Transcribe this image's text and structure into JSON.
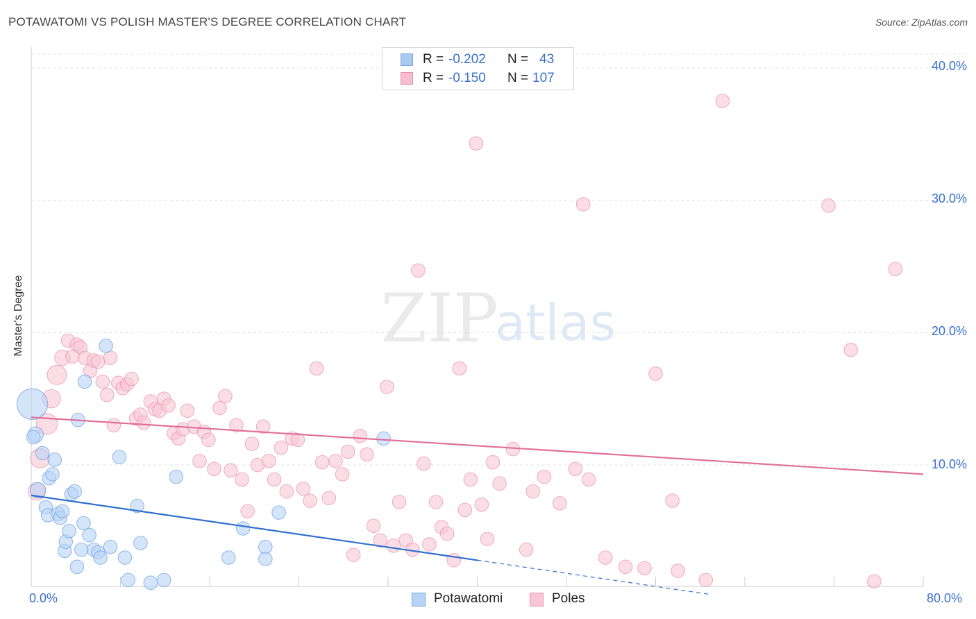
{
  "header": {
    "title": "POTAWATOMI VS POLISH MASTER'S DEGREE CORRELATION CHART",
    "source": "Source: ZipAtlas.com"
  },
  "watermark": {
    "zip": "ZIP",
    "atlas": "atlas"
  },
  "legend_top": [
    {
      "r_label": "R =",
      "r_value": "-0.202",
      "n_label": "N =",
      "n_value": "43",
      "color": "#a8c8f0",
      "border": "#7aa6dc"
    },
    {
      "r_label": "R =",
      "r_value": "-0.150",
      "n_label": "N =",
      "n_value": "107",
      "color": "#f7bcd0",
      "border": "#e892b0"
    }
  ],
  "legend_bottom": [
    {
      "label": "Potawatomi",
      "color": "#b7d3f5",
      "border": "#7aa6dc"
    },
    {
      "label": "Poles",
      "color": "#f9c6d6",
      "border": "#e892b0"
    }
  ],
  "axis_labels": {
    "x_min": "0.0%",
    "x_max": "80.0%",
    "y_ticks": [
      "10.0%",
      "20.0%",
      "30.0%",
      "40.0%"
    ]
  },
  "chart_data": {
    "type": "scatter",
    "title": "POTAWATOMI VS POLISH MASTER'S DEGREE CORRELATION CHART",
    "xlabel": "",
    "ylabel": "Master's Degree",
    "xlim": [
      0,
      80
    ],
    "ylim": [
      0,
      40
    ],
    "y_ticks": [
      10,
      20,
      30,
      40
    ],
    "series": [
      {
        "name": "Potawatomi",
        "color": "#6fa0e0",
        "fill": "#b7d3f5",
        "line_color": "#2f6fd0",
        "trend": {
          "x0": 0,
          "y0": 7.7,
          "x1": 40,
          "y1": 2.8,
          "dash_to_x": 61,
          "dash_to_y": 0.2
        },
        "points": [
          [
            0.1,
            14.6,
            30
          ],
          [
            0.4,
            12.3,
            14
          ],
          [
            0.6,
            8.1,
            14
          ],
          [
            1.0,
            10.9,
            12
          ],
          [
            1.3,
            6.8,
            12
          ],
          [
            1.5,
            6.2,
            12
          ],
          [
            1.6,
            9.0,
            12
          ],
          [
            1.9,
            9.3,
            12
          ],
          [
            2.1,
            10.4,
            12
          ],
          [
            2.4,
            6.3,
            12
          ],
          [
            2.6,
            6.0,
            12
          ],
          [
            2.8,
            6.5,
            12
          ],
          [
            3.0,
            3.5,
            12
          ],
          [
            3.1,
            4.2,
            12
          ],
          [
            3.4,
            5.0,
            12
          ],
          [
            3.6,
            7.8,
            12
          ],
          [
            3.9,
            8.0,
            12
          ],
          [
            4.1,
            2.3,
            12
          ],
          [
            4.2,
            13.4,
            12
          ],
          [
            4.5,
            3.6,
            12
          ],
          [
            4.7,
            5.6,
            12
          ],
          [
            4.8,
            16.3,
            12
          ],
          [
            5.2,
            4.7,
            12
          ],
          [
            5.6,
            3.6,
            12
          ],
          [
            6.0,
            3.4,
            12
          ],
          [
            6.2,
            3.0,
            12
          ],
          [
            6.7,
            19.0,
            12
          ],
          [
            7.1,
            3.8,
            12
          ],
          [
            7.9,
            10.6,
            12
          ],
          [
            8.4,
            3.0,
            12
          ],
          [
            8.7,
            1.3,
            12
          ],
          [
            9.5,
            6.9,
            12
          ],
          [
            9.8,
            4.1,
            12
          ],
          [
            10.7,
            1.1,
            12
          ],
          [
            11.9,
            1.3,
            12
          ],
          [
            13.0,
            9.1,
            12
          ],
          [
            17.7,
            3.0,
            12
          ],
          [
            19.0,
            5.2,
            12
          ],
          [
            21.0,
            3.8,
            12
          ],
          [
            21.0,
            2.9,
            12
          ],
          [
            22.2,
            6.4,
            12
          ],
          [
            31.6,
            12.0,
            12
          ],
          [
            0.2,
            12.1,
            12
          ]
        ]
      },
      {
        "name": "Poles",
        "color": "#e892b0",
        "fill": "#f9c6d6",
        "line_color": "#e0709a",
        "trend": {
          "x0": 0,
          "y0": 13.6,
          "x1": 80,
          "y1": 9.3
        },
        "points": [
          [
            0.5,
            8.0,
            16
          ],
          [
            0.8,
            10.5,
            18
          ],
          [
            1.4,
            13.1,
            20
          ],
          [
            1.8,
            15.0,
            17
          ],
          [
            2.3,
            16.8,
            18
          ],
          [
            2.8,
            18.1,
            14
          ],
          [
            3.3,
            19.4,
            12
          ],
          [
            3.7,
            18.2,
            12
          ],
          [
            4.1,
            19.1,
            12
          ],
          [
            4.4,
            18.9,
            12
          ],
          [
            4.8,
            18.1,
            12
          ],
          [
            5.3,
            17.1,
            12
          ],
          [
            5.6,
            17.9,
            12
          ],
          [
            6.0,
            17.8,
            12
          ],
          [
            6.4,
            16.3,
            12
          ],
          [
            6.8,
            15.3,
            12
          ],
          [
            7.1,
            18.1,
            12
          ],
          [
            7.4,
            13.0,
            12
          ],
          [
            7.8,
            16.2,
            12
          ],
          [
            8.2,
            15.8,
            12
          ],
          [
            8.6,
            16.1,
            12
          ],
          [
            9.0,
            16.5,
            12
          ],
          [
            9.4,
            13.5,
            12
          ],
          [
            9.8,
            13.8,
            12
          ],
          [
            10.1,
            13.2,
            12
          ],
          [
            10.7,
            14.8,
            12
          ],
          [
            11.1,
            14.2,
            12
          ],
          [
            11.5,
            14.1,
            12
          ],
          [
            11.9,
            15.0,
            12
          ],
          [
            12.3,
            14.5,
            12
          ],
          [
            12.8,
            12.4,
            12
          ],
          [
            13.2,
            12.0,
            12
          ],
          [
            13.6,
            12.7,
            12
          ],
          [
            14.0,
            14.1,
            12
          ],
          [
            14.6,
            12.9,
            12
          ],
          [
            15.1,
            10.3,
            12
          ],
          [
            15.5,
            12.5,
            12
          ],
          [
            15.9,
            11.9,
            12
          ],
          [
            16.4,
            9.7,
            12
          ],
          [
            16.9,
            14.3,
            12
          ],
          [
            17.4,
            15.2,
            12
          ],
          [
            17.9,
            9.6,
            12
          ],
          [
            18.4,
            13.0,
            12
          ],
          [
            18.9,
            8.9,
            12
          ],
          [
            19.4,
            6.5,
            12
          ],
          [
            19.8,
            11.6,
            12
          ],
          [
            20.3,
            10.0,
            12
          ],
          [
            20.8,
            12.9,
            12
          ],
          [
            21.3,
            10.3,
            12
          ],
          [
            21.8,
            8.9,
            12
          ],
          [
            22.4,
            11.3,
            12
          ],
          [
            22.9,
            8.0,
            12
          ],
          [
            23.4,
            12.0,
            12
          ],
          [
            23.9,
            11.9,
            12
          ],
          [
            24.4,
            8.2,
            12
          ],
          [
            25.0,
            7.3,
            12
          ],
          [
            25.6,
            17.3,
            12
          ],
          [
            26.1,
            10.2,
            12
          ],
          [
            26.7,
            7.5,
            12
          ],
          [
            27.3,
            10.3,
            12
          ],
          [
            27.9,
            9.3,
            12
          ],
          [
            28.4,
            11.0,
            12
          ],
          [
            28.9,
            3.2,
            12
          ],
          [
            29.5,
            12.2,
            12
          ],
          [
            30.1,
            10.8,
            12
          ],
          [
            30.7,
            5.4,
            12
          ],
          [
            31.3,
            4.3,
            12
          ],
          [
            31.9,
            15.9,
            12
          ],
          [
            32.5,
            3.9,
            12
          ],
          [
            33.0,
            7.2,
            12
          ],
          [
            33.6,
            4.3,
            12
          ],
          [
            34.2,
            3.6,
            12
          ],
          [
            34.7,
            24.7,
            12
          ],
          [
            35.2,
            10.1,
            12
          ],
          [
            35.7,
            4.0,
            12
          ],
          [
            36.3,
            7.2,
            12
          ],
          [
            36.8,
            5.3,
            12
          ],
          [
            37.3,
            4.8,
            12
          ],
          [
            37.9,
            2.8,
            12
          ],
          [
            38.4,
            17.3,
            12
          ],
          [
            38.9,
            6.6,
            12
          ],
          [
            39.4,
            8.9,
            12
          ],
          [
            39.9,
            34.3,
            12
          ],
          [
            40.4,
            7.0,
            12
          ],
          [
            40.9,
            4.4,
            12
          ],
          [
            41.4,
            10.2,
            12
          ],
          [
            42.0,
            8.6,
            12
          ],
          [
            43.2,
            11.2,
            12
          ],
          [
            44.4,
            3.6,
            12
          ],
          [
            45.0,
            8.0,
            12
          ],
          [
            46.0,
            9.1,
            12
          ],
          [
            47.4,
            7.1,
            12
          ],
          [
            48.8,
            9.7,
            12
          ],
          [
            49.5,
            29.7,
            12
          ],
          [
            50.0,
            8.9,
            12
          ],
          [
            51.5,
            3.0,
            12
          ],
          [
            53.3,
            2.3,
            12
          ],
          [
            55.0,
            2.2,
            12
          ],
          [
            56.0,
            16.9,
            12
          ],
          [
            57.5,
            7.3,
            12
          ],
          [
            58.0,
            2.0,
            12
          ],
          [
            60.5,
            1.3,
            12
          ],
          [
            62.0,
            37.5,
            12
          ],
          [
            71.5,
            29.6,
            12
          ],
          [
            73.5,
            18.7,
            12
          ],
          [
            77.5,
            24.8,
            12
          ],
          [
            75.6,
            1.2,
            12
          ]
        ]
      }
    ]
  }
}
